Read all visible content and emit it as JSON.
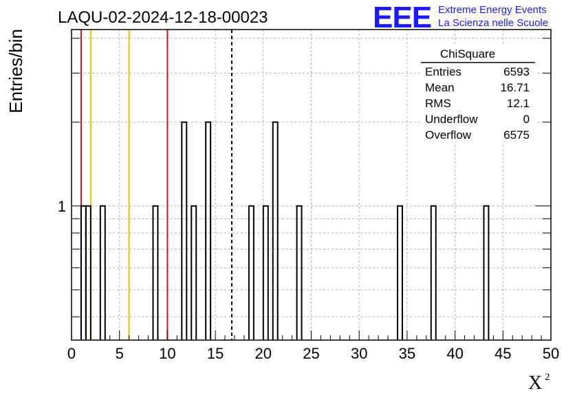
{
  "header": {
    "title": "LAQU-02-2024-12-18-00023",
    "logo_text": "EEE",
    "logo_line1": "Extreme Energy Events",
    "logo_line2": "La Scienza nelle Scuole",
    "logo_color": "#1a1aff"
  },
  "chart_data": {
    "type": "bar",
    "title": "LAQU-02-2024-12-18-00023",
    "xlabel": "X",
    "xlabel_superscript": "2",
    "ylabel": "Entries/bin",
    "xlim": [
      0,
      50
    ],
    "ylim": [
      0.33,
      4.3
    ],
    "y_scale": "log",
    "grid": true,
    "x_ticks": [
      0,
      5,
      10,
      15,
      20,
      25,
      30,
      35,
      40,
      45,
      50
    ],
    "y_tick_labels": [
      {
        "value": 1,
        "label": "1"
      }
    ],
    "bin_width": 0.5,
    "bins": [
      {
        "x": 1.0,
        "count": 1
      },
      {
        "x": 1.5,
        "count": 1
      },
      {
        "x": 3.0,
        "count": 1
      },
      {
        "x": 8.5,
        "count": 1
      },
      {
        "x": 11.5,
        "count": 2
      },
      {
        "x": 12.5,
        "count": 1
      },
      {
        "x": 14.0,
        "count": 2
      },
      {
        "x": 18.5,
        "count": 1
      },
      {
        "x": 20.0,
        "count": 1
      },
      {
        "x": 21.0,
        "count": 2
      },
      {
        "x": 23.5,
        "count": 1
      },
      {
        "x": 34.0,
        "count": 1
      },
      {
        "x": 37.5,
        "count": 1
      },
      {
        "x": 43.0,
        "count": 1
      }
    ],
    "vertical_lines": [
      {
        "x": 1.0,
        "color": "#dd1111",
        "style": "solid"
      },
      {
        "x": 2.0,
        "color": "#f0c000",
        "style": "solid"
      },
      {
        "x": 6.0,
        "color": "#f0c000",
        "style": "solid"
      },
      {
        "x": 10.0,
        "color": "#dd1111",
        "style": "solid"
      },
      {
        "x": 16.71,
        "color": "#000000",
        "style": "dashed"
      }
    ],
    "stats": {
      "name": "ChiSquare",
      "rows": [
        {
          "label": "Entries",
          "value": "6593"
        },
        {
          "label": "Mean",
          "value": "16.71"
        },
        {
          "label": "RMS",
          "value": "12.1"
        },
        {
          "label": "Underflow",
          "value": "0"
        },
        {
          "label": "Overflow",
          "value": "6575"
        }
      ]
    }
  }
}
